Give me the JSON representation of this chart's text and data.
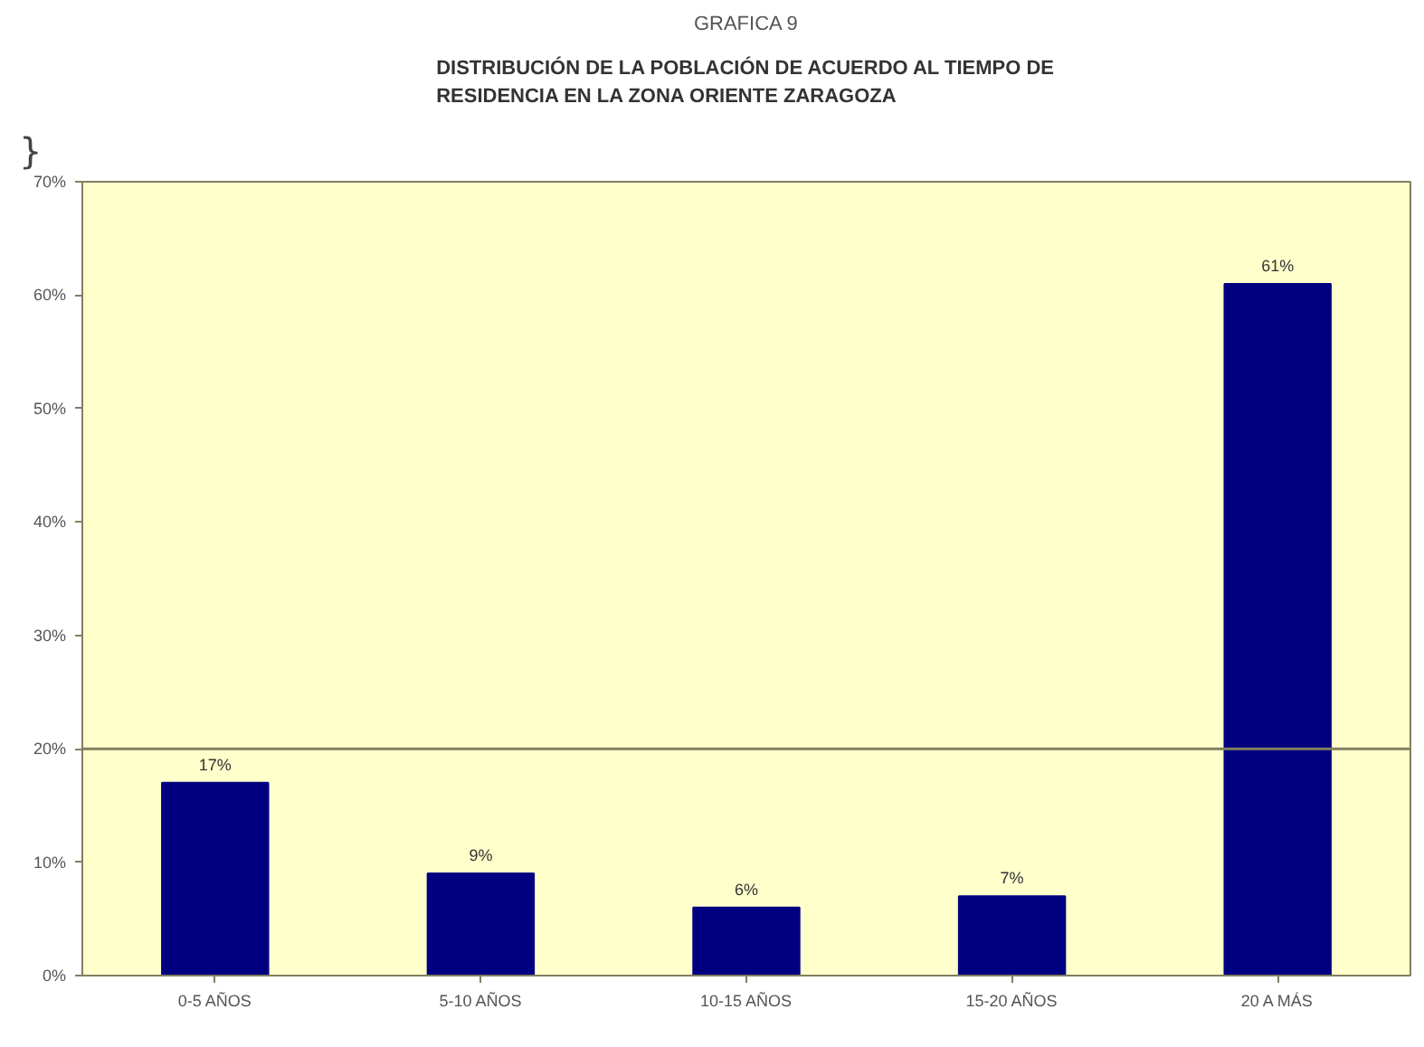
{
  "chart_data": {
    "type": "bar",
    "title": "GRAFICA 9",
    "subtitle": "DISTRIBUCIÓN DE LA POBLACIÓN DE ACUERDO AL TIEMPO DE\nRESIDENCIA EN LA ZONA ORIENTE ZARAGOZA",
    "annotations": [
      "}"
    ],
    "categories": [
      "0-5 AÑOS",
      "5-10 AÑOS",
      "10-15 AÑOS",
      "15-20 AÑOS",
      "20 A MÁS"
    ],
    "values": [
      17,
      9,
      6,
      7,
      61
    ],
    "color": "#000080",
    "value_labels": [
      "17%",
      "9%",
      "6%",
      "7%",
      "61%"
    ],
    "ylim": [
      0,
      70
    ],
    "yticks": [
      {
        "value": 0,
        "label": "0%"
      },
      {
        "value": 10,
        "label": "10%"
      },
      {
        "value": 20,
        "label": "20%"
      },
      {
        "value": 30,
        "label": "30%"
      },
      {
        "value": 40,
        "label": "40%"
      },
      {
        "value": 50,
        "label": "50%"
      },
      {
        "value": 60,
        "label": "60%"
      },
      {
        "value": 70,
        "label": "70%"
      }
    ],
    "ref_lines": [
      {
        "axis": "y",
        "value": 20,
        "color": "#808060"
      }
    ],
    "grid": false
  }
}
